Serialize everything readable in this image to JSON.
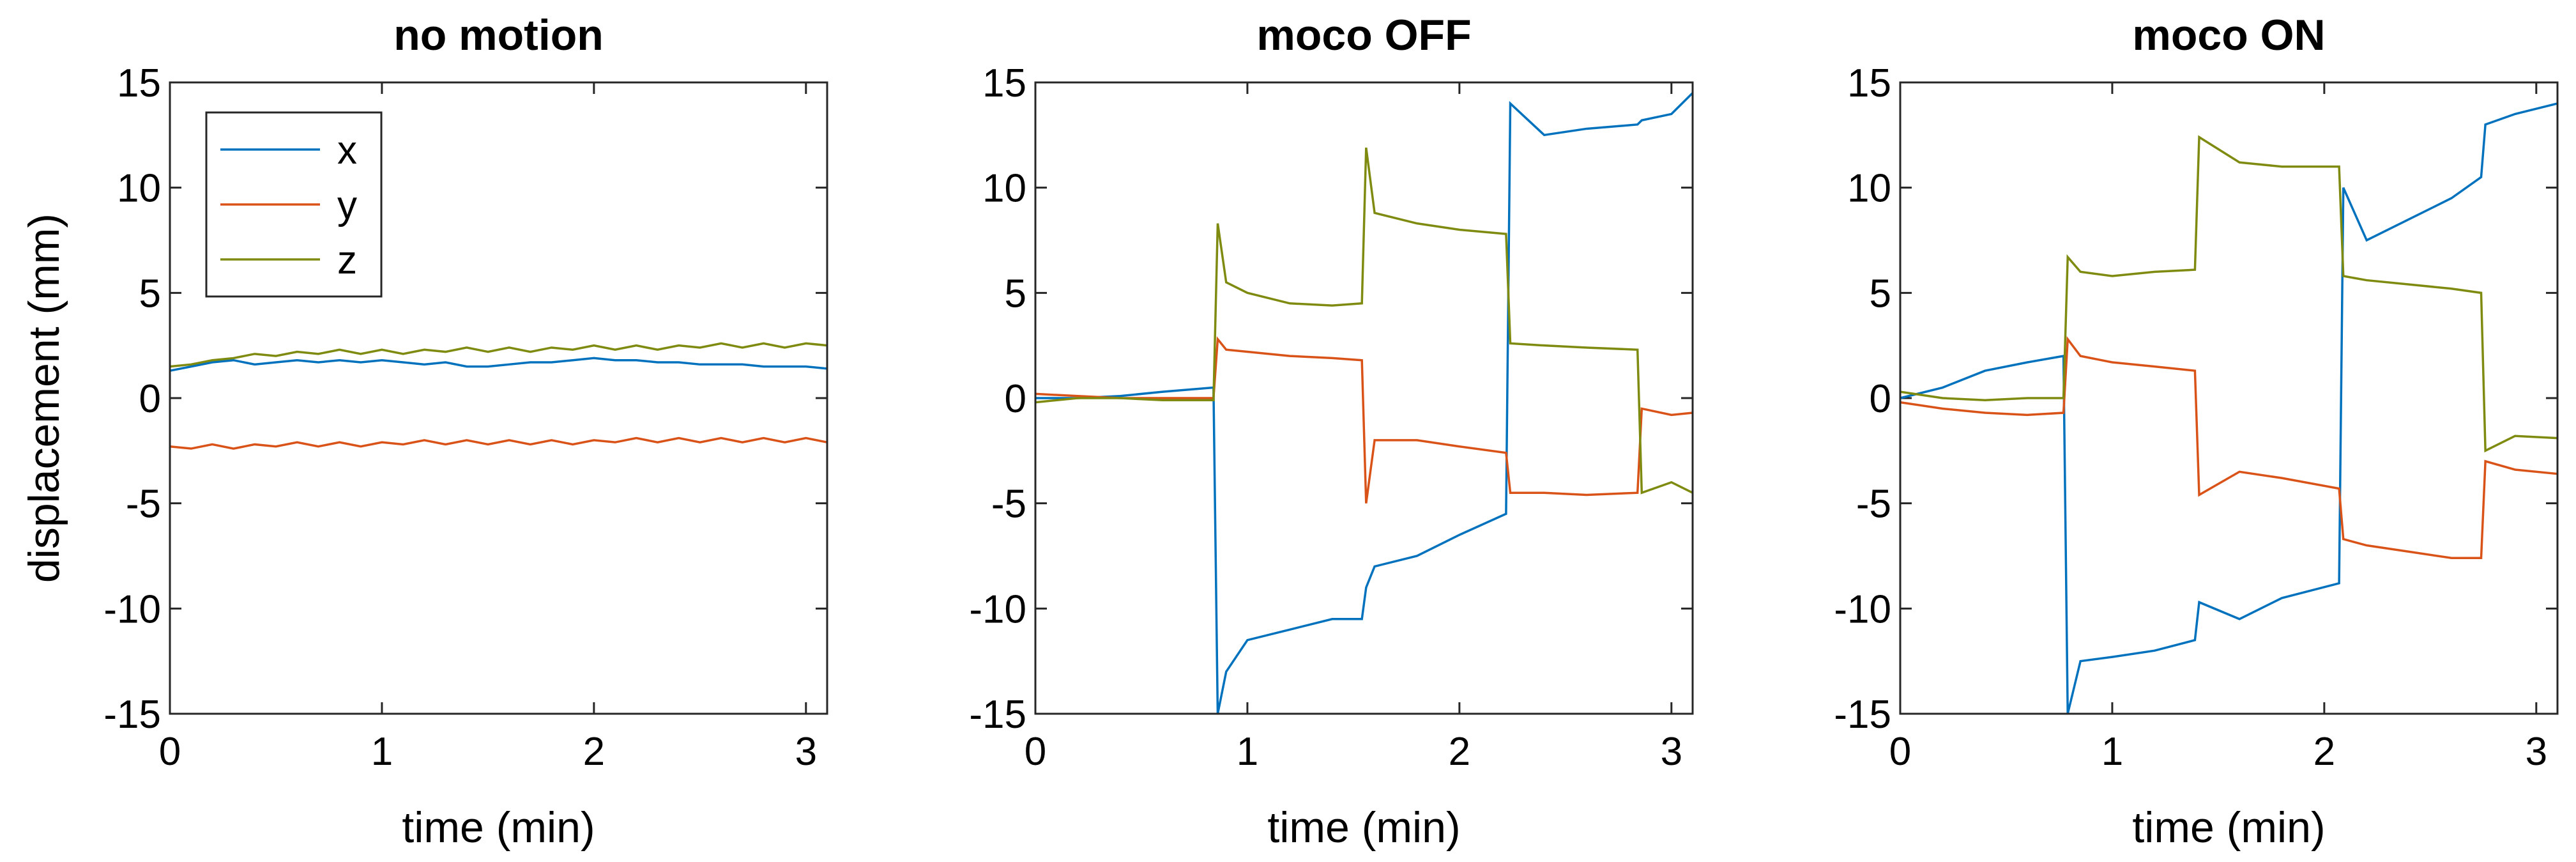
{
  "chart_data": [
    {
      "type": "line",
      "title": "no motion",
      "xlabel": "time (min)",
      "ylabel": "displacement (mm)",
      "xlim": [
        0,
        3.1
      ],
      "ylim": [
        -15,
        15
      ],
      "xticks": [
        0,
        1,
        2,
        3
      ],
      "yticks": [
        -15,
        -10,
        -5,
        0,
        5,
        10,
        15
      ],
      "legend": "upper left",
      "x": [
        0,
        0.1,
        0.2,
        0.3,
        0.4,
        0.5,
        0.6,
        0.7,
        0.8,
        0.9,
        1.0,
        1.1,
        1.2,
        1.3,
        1.4,
        1.5,
        1.6,
        1.7,
        1.8,
        1.9,
        2.0,
        2.1,
        2.2,
        2.3,
        2.4,
        2.5,
        2.6,
        2.7,
        2.8,
        2.9,
        3.0,
        3.1
      ],
      "series": [
        {
          "name": "x",
          "color": "#0072bd",
          "values": [
            1.3,
            1.5,
            1.7,
            1.8,
            1.6,
            1.7,
            1.8,
            1.7,
            1.8,
            1.7,
            1.8,
            1.7,
            1.6,
            1.7,
            1.5,
            1.5,
            1.6,
            1.7,
            1.7,
            1.8,
            1.9,
            1.8,
            1.8,
            1.7,
            1.7,
            1.6,
            1.6,
            1.6,
            1.5,
            1.5,
            1.5,
            1.4
          ]
        },
        {
          "name": "y",
          "color": "#d95319",
          "values": [
            -2.3,
            -2.4,
            -2.2,
            -2.4,
            -2.2,
            -2.3,
            -2.1,
            -2.3,
            -2.1,
            -2.3,
            -2.1,
            -2.2,
            -2.0,
            -2.2,
            -2.0,
            -2.2,
            -2.0,
            -2.2,
            -2.0,
            -2.2,
            -2.0,
            -2.1,
            -1.9,
            -2.1,
            -1.9,
            -2.1,
            -1.9,
            -2.1,
            -1.9,
            -2.1,
            -1.9,
            -2.1
          ]
        },
        {
          "name": "z",
          "color": "#7e8b10",
          "values": [
            1.5,
            1.6,
            1.8,
            1.9,
            2.1,
            2.0,
            2.2,
            2.1,
            2.3,
            2.1,
            2.3,
            2.1,
            2.3,
            2.2,
            2.4,
            2.2,
            2.4,
            2.2,
            2.4,
            2.3,
            2.5,
            2.3,
            2.5,
            2.3,
            2.5,
            2.4,
            2.6,
            2.4,
            2.6,
            2.4,
            2.6,
            2.5
          ]
        }
      ]
    },
    {
      "type": "line",
      "title": "moco OFF",
      "xlabel": "time (min)",
      "xlim": [
        0,
        3.1
      ],
      "ylim": [
        -15,
        15
      ],
      "xticks": [
        0,
        1,
        2,
        3
      ],
      "yticks": [
        -15,
        -10,
        -5,
        0,
        5,
        10,
        15
      ],
      "x": [
        0,
        0.2,
        0.4,
        0.6,
        0.84,
        0.86,
        0.9,
        1.0,
        1.2,
        1.4,
        1.54,
        1.56,
        1.6,
        1.8,
        2.0,
        2.22,
        2.24,
        2.4,
        2.6,
        2.84,
        2.86,
        3.0,
        3.1
      ],
      "series": [
        {
          "color": "#0072bd",
          "values": [
            0,
            0,
            0.1,
            0.3,
            0.5,
            -15,
            -13,
            -11.5,
            -11,
            -10.5,
            -10.5,
            -9,
            -8,
            -7.5,
            -6.5,
            -5.5,
            14,
            12.5,
            12.8,
            13,
            13.2,
            13.5,
            14.5
          ]
        },
        {
          "color": "#d95319",
          "values": [
            0.2,
            0.1,
            0,
            0,
            0,
            2.8,
            2.3,
            2.2,
            2,
            1.9,
            1.8,
            -5,
            -2,
            -2,
            -2.3,
            -2.6,
            -4.5,
            -4.5,
            -4.6,
            -4.5,
            -0.5,
            -0.8,
            -0.7
          ]
        },
        {
          "color": "#7e8b10",
          "values": [
            -0.2,
            0,
            0,
            -0.1,
            -0.1,
            8.3,
            5.5,
            5,
            4.5,
            4.4,
            4.5,
            11.9,
            8.8,
            8.3,
            8,
            7.8,
            2.6,
            2.5,
            2.4,
            2.3,
            -4.5,
            -4,
            -4.5
          ]
        }
      ]
    },
    {
      "type": "line",
      "title": "moco ON",
      "xlabel": "time (min)",
      "xlim": [
        0,
        3.1
      ],
      "ylim": [
        -15,
        15
      ],
      "xticks": [
        0,
        1,
        2,
        3
      ],
      "yticks": [
        -15,
        -10,
        -5,
        0,
        5,
        10,
        15
      ],
      "x": [
        0,
        0.2,
        0.4,
        0.6,
        0.77,
        0.79,
        0.85,
        1.0,
        1.2,
        1.39,
        1.41,
        1.6,
        1.8,
        2.07,
        2.09,
        2.2,
        2.4,
        2.6,
        2.74,
        2.76,
        2.9,
        3.1
      ],
      "series": [
        {
          "color": "#0072bd",
          "values": [
            0,
            0.5,
            1.3,
            1.7,
            2,
            -15,
            -12.5,
            -12.3,
            -12,
            -11.5,
            -9.7,
            -10.5,
            -9.5,
            -8.8,
            10,
            7.5,
            8.5,
            9.5,
            10.5,
            13,
            13.5,
            14
          ]
        },
        {
          "color": "#d95319",
          "values": [
            -0.2,
            -0.5,
            -0.7,
            -0.8,
            -0.7,
            2.8,
            2,
            1.7,
            1.5,
            1.3,
            -4.6,
            -3.5,
            -3.8,
            -4.3,
            -6.7,
            -7,
            -7.3,
            -7.6,
            -7.6,
            -3,
            -3.4,
            -3.6
          ]
        },
        {
          "color": "#7e8b10",
          "values": [
            0.3,
            0,
            -0.1,
            0,
            0,
            6.7,
            6,
            5.8,
            6,
            6.1,
            12.4,
            11.2,
            11,
            11,
            5.8,
            5.6,
            5.4,
            5.2,
            5,
            -2.5,
            -1.8,
            -1.9
          ]
        }
      ]
    }
  ]
}
